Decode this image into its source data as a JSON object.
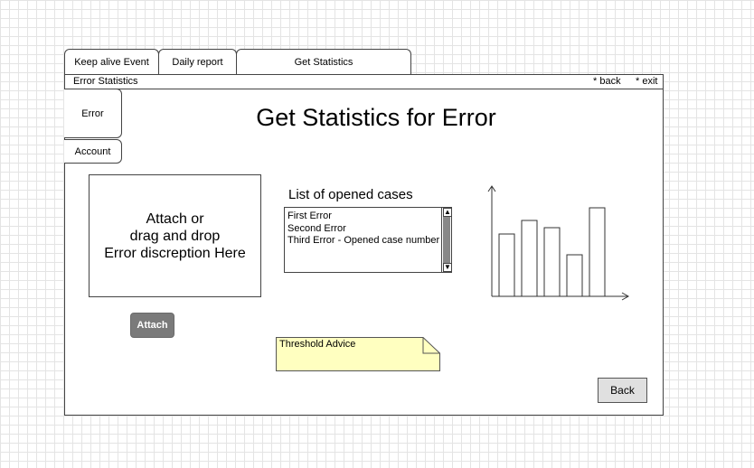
{
  "tabs": [
    {
      "label": "Keep alive Event"
    },
    {
      "label": "Daily report"
    },
    {
      "label": "Get Statistics"
    }
  ],
  "window": {
    "title": "Error Statistics",
    "back_link": "* back",
    "exit_link": "* exit"
  },
  "side_tabs": [
    {
      "label": "Error"
    },
    {
      "label": "Account"
    }
  ],
  "page_title": "Get Statistics for Error",
  "dropzone": {
    "lines": [
      "Attach or",
      "drag and drop",
      "Error discreption Here"
    ]
  },
  "attach_button": "Attach",
  "cases": {
    "label": "List of opened cases",
    "items": [
      "First Error",
      "Second Error",
      "Third Error -  Opened case number"
    ]
  },
  "threshold_note": "Threshold Advice",
  "back_button": "Back",
  "chart_data": {
    "type": "bar",
    "values": [
      69,
      84,
      76,
      46,
      98
    ],
    "ylim": [
      0,
      120
    ],
    "grid": false,
    "bar_color": "#ffffff",
    "stroke_color": "#333333"
  },
  "colors": {
    "note_fill": "#ffffc0",
    "attach_fill": "#7a7a7a",
    "back_fill": "#e0e0e0"
  }
}
